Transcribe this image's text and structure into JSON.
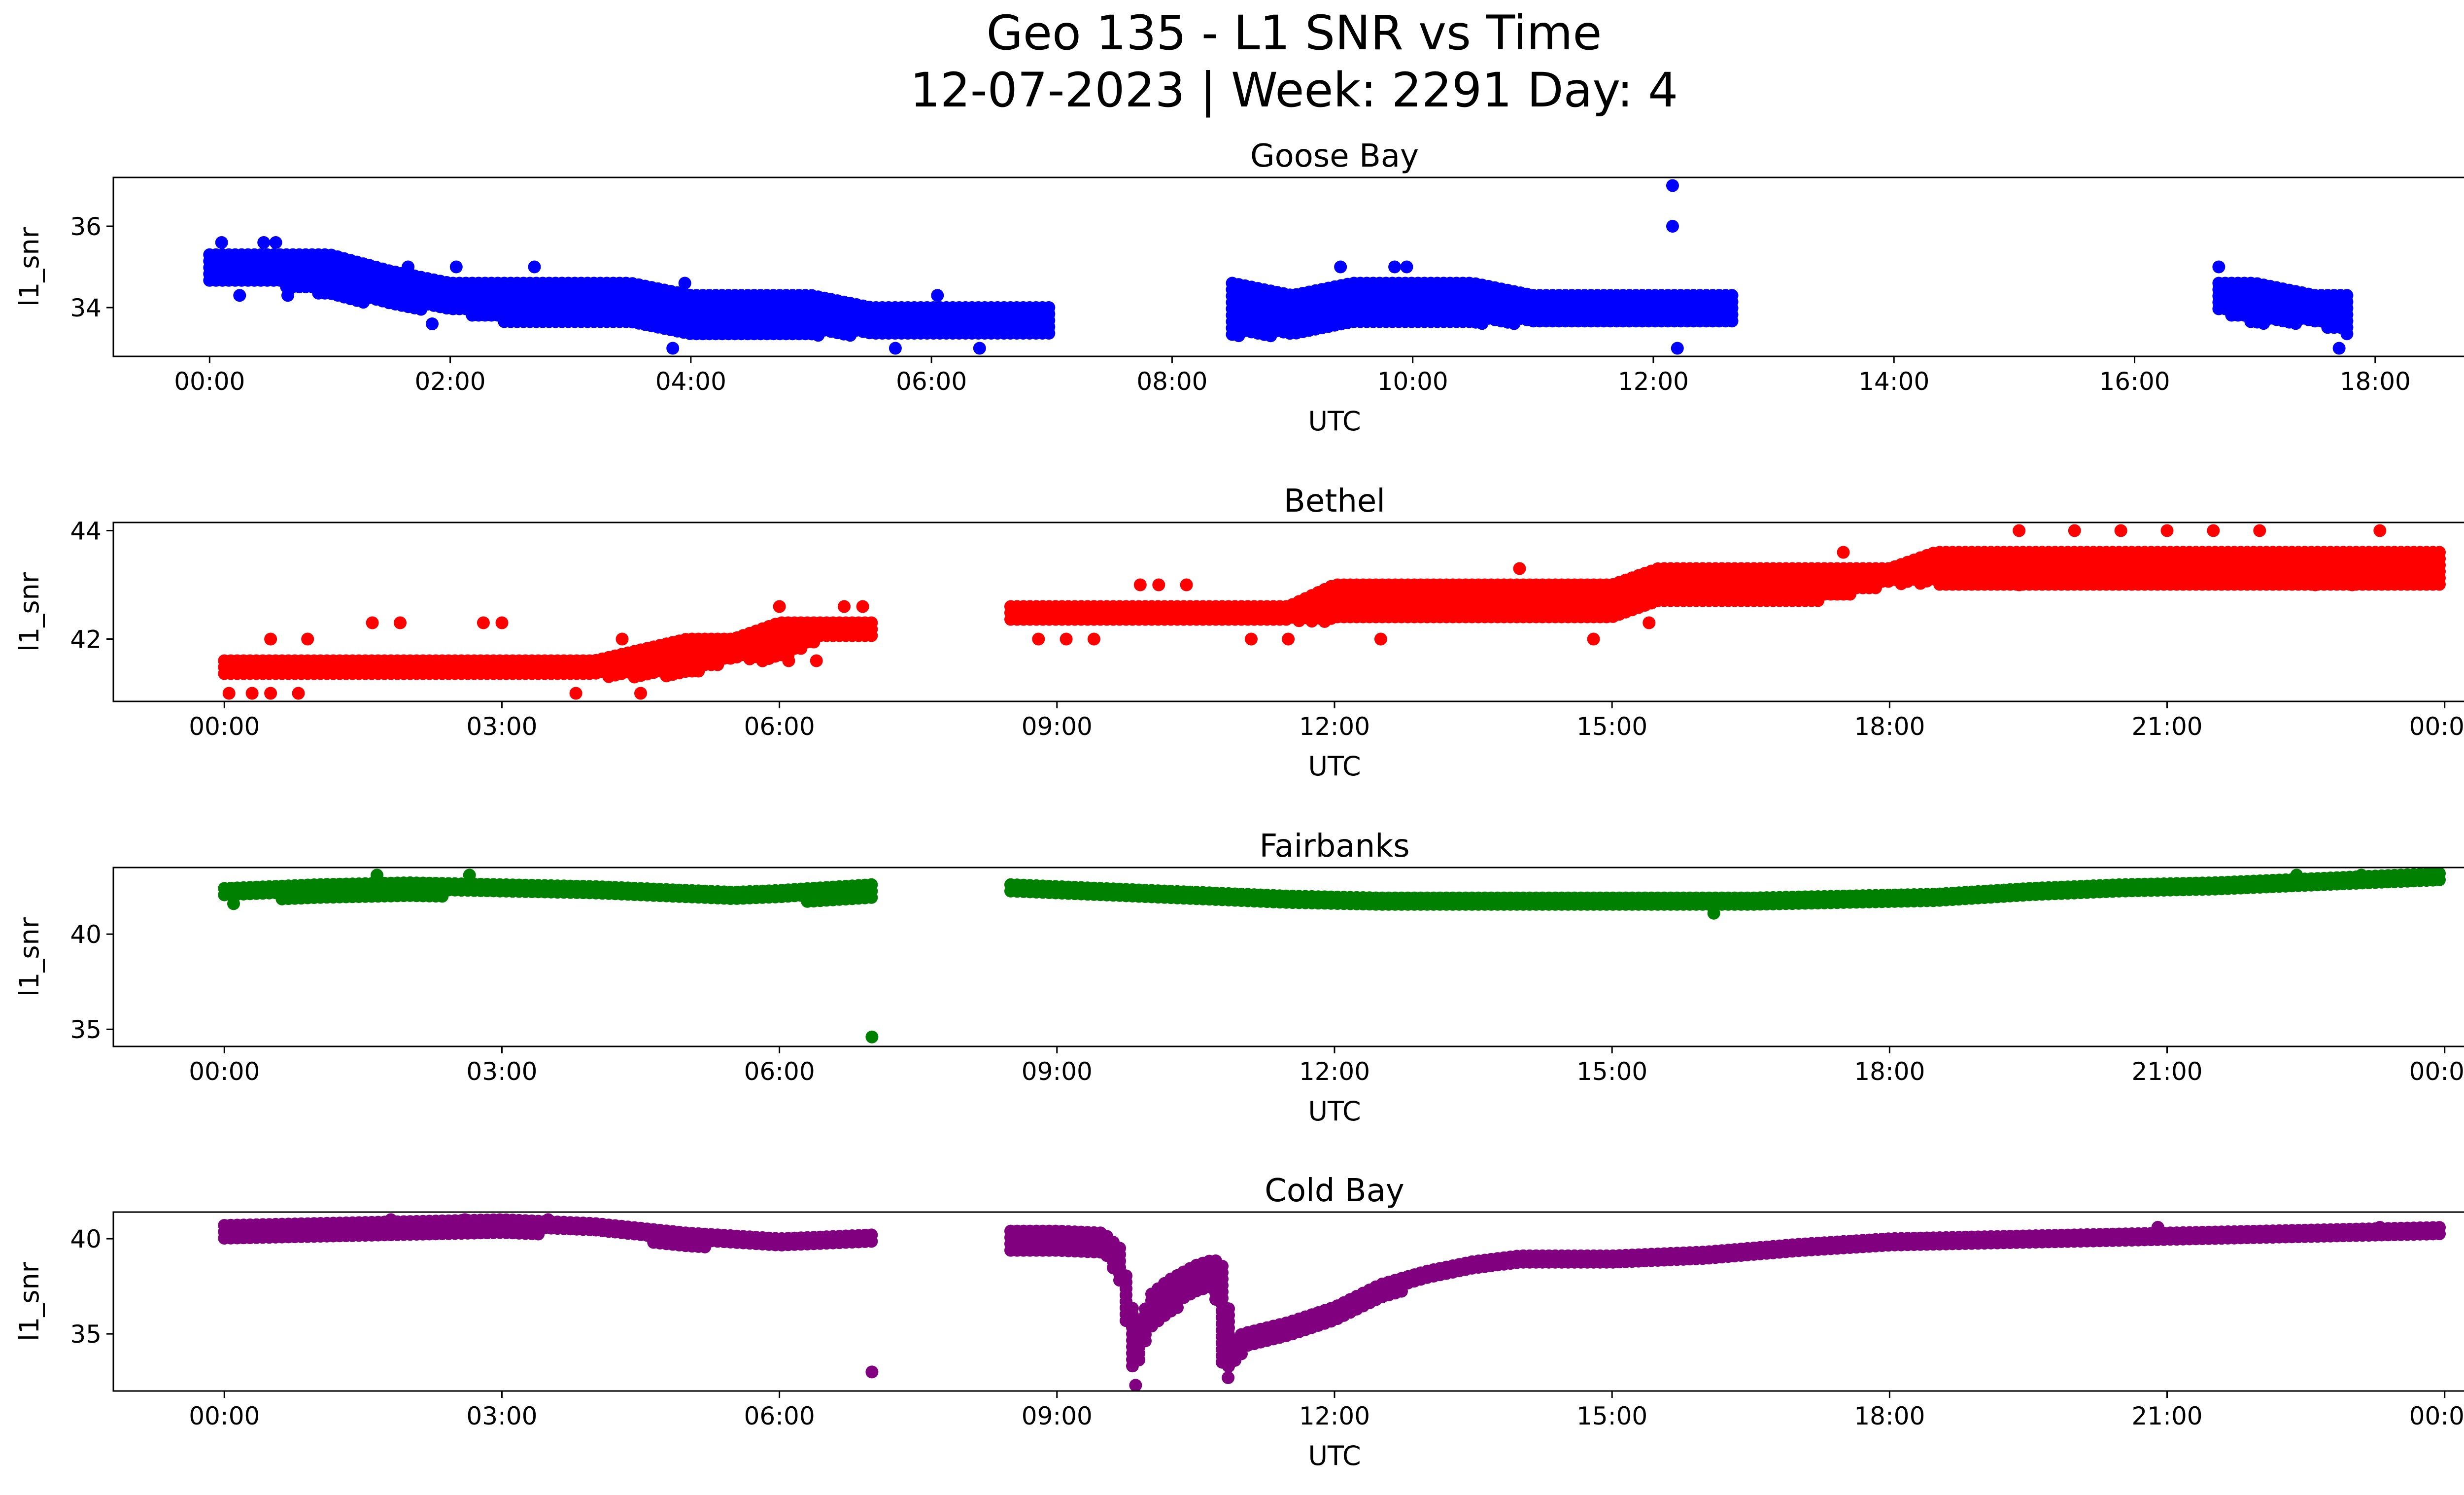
{
  "title_line1": "Geo 135 - L1 SNR vs Time",
  "title_line2": "12-07-2023 | Week: 2291 Day: 4",
  "chart_data": [
    {
      "type": "scatter",
      "title": "Goose Bay",
      "xlabel": "UTC",
      "ylabel": "l1_snr",
      "color": "#0000ff",
      "xlim": [
        -0.8,
        19.5
      ],
      "ylim": [
        32.8,
        37.2
      ],
      "xticks": [
        0,
        2,
        4,
        6,
        8,
        10,
        12,
        14,
        16,
        18
      ],
      "xtick_labels": [
        "00:00",
        "02:00",
        "04:00",
        "06:00",
        "08:00",
        "10:00",
        "12:00",
        "14:00",
        "16:00",
        "18:00"
      ],
      "yticks": [
        34,
        36
      ],
      "ytick_labels": [
        "34",
        "36"
      ],
      "grid": false,
      "series": [
        {
          "segments": [
            {
              "x": [
                0.0,
                0.5,
                1.0,
                1.5,
                2.0,
                2.5,
                3.0,
                3.5,
                4.0,
                4.5,
                5.0,
                5.5,
                6.0,
                6.5,
                7.0
              ],
              "y_low": [
                34.6,
                34.6,
                34.3,
                34.0,
                33.9,
                33.6,
                33.6,
                33.6,
                33.3,
                33.3,
                33.3,
                33.3,
                33.3,
                33.3,
                33.3
              ],
              "y_high": [
                35.3,
                35.3,
                35.3,
                34.9,
                34.6,
                34.6,
                34.6,
                34.6,
                34.3,
                34.3,
                34.3,
                34.0,
                34.0,
                34.0,
                34.0
              ]
            },
            {
              "x": [
                8.5,
                9.0,
                9.5,
                10.0,
                10.5,
                11.0,
                11.5,
                12.0,
                12.5,
                12.7
              ],
              "y_low": [
                33.3,
                33.3,
                33.6,
                33.6,
                33.6,
                33.6,
                33.6,
                33.6,
                33.6,
                33.6
              ],
              "y_high": [
                34.6,
                34.3,
                34.6,
                34.6,
                34.6,
                34.3,
                34.3,
                34.3,
                34.3,
                34.3
              ]
            },
            {
              "x": [
                16.7,
                17.0,
                17.5,
                17.8
              ],
              "y_low": [
                33.9,
                33.6,
                33.6,
                33.3
              ],
              "y_high": [
                34.6,
                34.6,
                34.3,
                34.3
              ]
            }
          ],
          "points": [
            {
              "x": 0.1,
              "y": 35.6
            },
            {
              "x": 0.45,
              "y": 35.6
            },
            {
              "x": 0.55,
              "y": 35.6
            },
            {
              "x": 0.25,
              "y": 34.3
            },
            {
              "x": 0.65,
              "y": 34.3
            },
            {
              "x": 1.3,
              "y": 35.0
            },
            {
              "x": 1.65,
              "y": 35.0
            },
            {
              "x": 2.05,
              "y": 35.0
            },
            {
              "x": 2.7,
              "y": 35.0
            },
            {
              "x": 1.85,
              "y": 33.6
            },
            {
              "x": 3.95,
              "y": 34.6
            },
            {
              "x": 3.85,
              "y": 33.0
            },
            {
              "x": 5.7,
              "y": 33.0
            },
            {
              "x": 6.05,
              "y": 34.3
            },
            {
              "x": 6.4,
              "y": 33.0
            },
            {
              "x": 9.4,
              "y": 35.0
            },
            {
              "x": 9.85,
              "y": 35.0
            },
            {
              "x": 9.95,
              "y": 35.0
            },
            {
              "x": 12.16,
              "y": 37.0
            },
            {
              "x": 12.16,
              "y": 36.0
            },
            {
              "x": 12.2,
              "y": 33.0
            },
            {
              "x": 16.7,
              "y": 35.0
            },
            {
              "x": 17.7,
              "y": 33.0
            }
          ]
        }
      ]
    },
    {
      "type": "scatter",
      "title": "Bethel",
      "xlabel": "UTC",
      "ylabel": "l1_snr",
      "color": "#ff0000",
      "xlim": [
        -1.2,
        25.2
      ],
      "ylim": [
        40.85,
        44.15
      ],
      "xticks": [
        0,
        3,
        6,
        9,
        12,
        15,
        18,
        21,
        24
      ],
      "xtick_labels": [
        "00:00",
        "03:00",
        "06:00",
        "09:00",
        "12:00",
        "15:00",
        "18:00",
        "21:00",
        "00:00"
      ],
      "yticks": [
        42,
        44
      ],
      "ytick_labels": [
        "42",
        "44"
      ],
      "grid": false,
      "series": [
        {
          "segments": [
            {
              "x": [
                0.0,
                1.0,
                2.0,
                3.0,
                4.0,
                5.0,
                5.5,
                6.0,
                6.5,
                7.0
              ],
              "y_low": [
                41.3,
                41.3,
                41.3,
                41.3,
                41.3,
                41.3,
                41.6,
                41.6,
                42.0,
                42.0
              ],
              "y_high": [
                41.6,
                41.6,
                41.6,
                41.6,
                41.6,
                42.0,
                42.0,
                42.3,
                42.3,
                42.3
              ]
            },
            {
              "x": [
                8.5,
                9.5,
                10.5,
                11.5,
                12.0,
                13.0,
                14.0,
                15.0,
                15.5,
                16.0,
                17.0,
                18.0,
                18.5,
                19.5,
                20.5,
                21.5,
                22.5,
                23.5,
                24.0
              ],
              "y_low": [
                42.3,
                42.3,
                42.3,
                42.3,
                42.3,
                42.3,
                42.3,
                42.3,
                42.6,
                42.6,
                42.6,
                43.0,
                43.0,
                43.0,
                43.0,
                43.0,
                43.0,
                43.0,
                43.0
              ],
              "y_high": [
                42.6,
                42.6,
                42.6,
                42.6,
                43.0,
                43.0,
                43.0,
                43.0,
                43.3,
                43.3,
                43.3,
                43.3,
                43.6,
                43.6,
                43.6,
                43.6,
                43.6,
                43.6,
                43.6
              ]
            }
          ],
          "points": [
            {
              "x": 0.05,
              "y": 41.0
            },
            {
              "x": 0.3,
              "y": 41.0
            },
            {
              "x": 0.5,
              "y": 41.0
            },
            {
              "x": 0.8,
              "y": 41.0
            },
            {
              "x": 0.5,
              "y": 42.0
            },
            {
              "x": 0.9,
              "y": 42.0
            },
            {
              "x": 1.6,
              "y": 42.3
            },
            {
              "x": 1.9,
              "y": 42.3
            },
            {
              "x": 2.8,
              "y": 42.3
            },
            {
              "x": 3.0,
              "y": 42.3
            },
            {
              "x": 3.8,
              "y": 41.0
            },
            {
              "x": 4.5,
              "y": 41.0
            },
            {
              "x": 4.3,
              "y": 42.0
            },
            {
              "x": 6.0,
              "y": 42.6
            },
            {
              "x": 6.1,
              "y": 41.6
            },
            {
              "x": 6.4,
              "y": 41.6
            },
            {
              "x": 6.7,
              "y": 42.6
            },
            {
              "x": 6.9,
              "y": 42.6
            },
            {
              "x": 8.8,
              "y": 42.0
            },
            {
              "x": 9.1,
              "y": 42.0
            },
            {
              "x": 9.4,
              "y": 42.0
            },
            {
              "x": 9.9,
              "y": 43.0
            },
            {
              "x": 10.1,
              "y": 43.0
            },
            {
              "x": 10.4,
              "y": 43.0
            },
            {
              "x": 11.1,
              "y": 42.0
            },
            {
              "x": 11.5,
              "y": 42.0
            },
            {
              "x": 12.5,
              "y": 42.0
            },
            {
              "x": 14.0,
              "y": 43.3
            },
            {
              "x": 14.8,
              "y": 42.0
            },
            {
              "x": 15.4,
              "y": 42.3
            },
            {
              "x": 17.5,
              "y": 43.6
            },
            {
              "x": 19.4,
              "y": 43.0
            },
            {
              "x": 19.4,
              "y": 44.0
            },
            {
              "x": 20.0,
              "y": 44.0
            },
            {
              "x": 20.5,
              "y": 44.0
            },
            {
              "x": 21.0,
              "y": 44.0
            },
            {
              "x": 21.5,
              "y": 44.0
            },
            {
              "x": 22.0,
              "y": 44.0
            },
            {
              "x": 22.6,
              "y": 43.0
            },
            {
              "x": 23.0,
              "y": 43.0
            },
            {
              "x": 23.3,
              "y": 44.0
            }
          ]
        }
      ]
    },
    {
      "type": "scatter",
      "title": "Fairbanks",
      "xlabel": "UTC",
      "ylabel": "l1_snr",
      "color": "#008000",
      "xlim": [
        -1.2,
        25.2
      ],
      "ylim": [
        34.1,
        43.5
      ],
      "xticks": [
        0,
        3,
        6,
        9,
        12,
        15,
        18,
        21,
        24
      ],
      "xtick_labels": [
        "00:00",
        "03:00",
        "06:00",
        "09:00",
        "12:00",
        "15:00",
        "18:00",
        "21:00",
        "00:00"
      ],
      "yticks": [
        35,
        40
      ],
      "ytick_labels": [
        "35",
        "40"
      ],
      "grid": false,
      "series": [
        {
          "segments": [
            {
              "x": [
                0.0,
                1.0,
                2.0,
                3.0,
                4.0,
                5.0,
                5.5,
                6.0,
                7.0
              ],
              "y_low": [
                41.8,
                41.9,
                42.0,
                42.0,
                41.9,
                41.8,
                41.7,
                41.7,
                41.8
              ],
              "y_high": [
                42.4,
                42.6,
                42.7,
                42.6,
                42.5,
                42.3,
                42.2,
                42.3,
                42.6
              ]
            },
            {
              "x": [
                8.5,
                9.5,
                10.5,
                11.5,
                12.5,
                13.5,
                14.5,
                15.5,
                16.5,
                17.5,
                18.5,
                19.5,
                20.5,
                21.5,
                22.5,
                23.5,
                24.0
              ],
              "y_low": [
                42.0,
                41.8,
                41.6,
                41.5,
                41.4,
                41.4,
                41.4,
                41.3,
                41.3,
                41.4,
                41.5,
                41.8,
                42.0,
                42.1,
                42.3,
                42.5,
                42.6
              ],
              "y_high": [
                42.6,
                42.4,
                42.2,
                42.0,
                41.9,
                41.9,
                41.9,
                41.9,
                41.9,
                42.0,
                42.1,
                42.4,
                42.6,
                42.7,
                42.9,
                43.1,
                43.2
              ]
            }
          ],
          "points": [
            {
              "x": 1.65,
              "y": 43.1
            },
            {
              "x": 2.65,
              "y": 43.1
            },
            {
              "x": 7.0,
              "y": 34.6
            },
            {
              "x": 22.4,
              "y": 43.1
            },
            {
              "x": 23.1,
              "y": 43.1
            },
            {
              "x": 0.1,
              "y": 41.6
            },
            {
              "x": 16.1,
              "y": 41.1
            }
          ]
        }
      ]
    },
    {
      "type": "scatter",
      "title": "Cold Bay",
      "xlabel": "UTC",
      "ylabel": "l1_snr",
      "color": "#800080",
      "xlim": [
        -1.2,
        25.2
      ],
      "ylim": [
        32.0,
        41.4
      ],
      "xticks": [
        0,
        3,
        6,
        9,
        12,
        15,
        18,
        21,
        24
      ],
      "xtick_labels": [
        "00:00",
        "03:00",
        "06:00",
        "09:00",
        "12:00",
        "15:00",
        "18:00",
        "21:00",
        "00:00"
      ],
      "yticks": [
        35,
        40
      ],
      "ytick_labels": [
        "35",
        "40"
      ],
      "grid": false,
      "series": [
        {
          "segments": [
            {
              "x": [
                0.0,
                1.0,
                2.0,
                3.0,
                4.0,
                5.0,
                6.0,
                7.0
              ],
              "y_low": [
                40.0,
                40.1,
                40.2,
                40.3,
                40.2,
                39.6,
                39.5,
                39.6
              ],
              "y_high": [
                40.7,
                40.8,
                40.9,
                41.0,
                40.8,
                40.3,
                40.0,
                40.2
              ]
            },
            {
              "x": [
                8.5,
                9.0,
                9.5,
                9.7,
                9.8,
                9.9,
                10.0,
                10.2,
                10.5,
                10.7,
                10.8,
                10.9,
                11.0,
                11.5,
                12.0,
                12.5,
                13.0,
                13.5,
                14.0,
                15.0,
                16.0,
                17.0,
                18.0,
                19.0,
                20.0,
                21.0,
                22.0,
                23.0,
                24.0
              ],
              "y_low": [
                39.4,
                39.4,
                39.3,
                37.5,
                33.2,
                33.5,
                35.2,
                35.8,
                37.2,
                37.5,
                32.6,
                33.4,
                34.0,
                34.8,
                35.6,
                36.8,
                37.8,
                38.2,
                38.5,
                38.6,
                38.8,
                39.2,
                39.5,
                39.6,
                39.7,
                39.8,
                39.9,
                40.0,
                40.0
              ],
              "y_high": [
                40.4,
                40.4,
                40.3,
                39.4,
                36.5,
                35.5,
                37.0,
                37.8,
                38.6,
                38.9,
                38.5,
                34.5,
                35.0,
                35.6,
                36.4,
                37.6,
                38.3,
                38.8,
                39.1,
                39.1,
                39.3,
                39.7,
                40.0,
                40.1,
                40.2,
                40.3,
                40.4,
                40.5,
                40.6
              ]
            }
          ],
          "points": [
            {
              "x": 7.0,
              "y": 33.0
            },
            {
              "x": 9.85,
              "y": 32.3
            },
            {
              "x": 10.85,
              "y": 32.7
            },
            {
              "x": 1.8,
              "y": 41.0
            },
            {
              "x": 2.6,
              "y": 41.0
            },
            {
              "x": 3.5,
              "y": 41.0
            },
            {
              "x": 20.9,
              "y": 40.6
            },
            {
              "x": 23.3,
              "y": 40.6
            }
          ]
        }
      ]
    }
  ]
}
